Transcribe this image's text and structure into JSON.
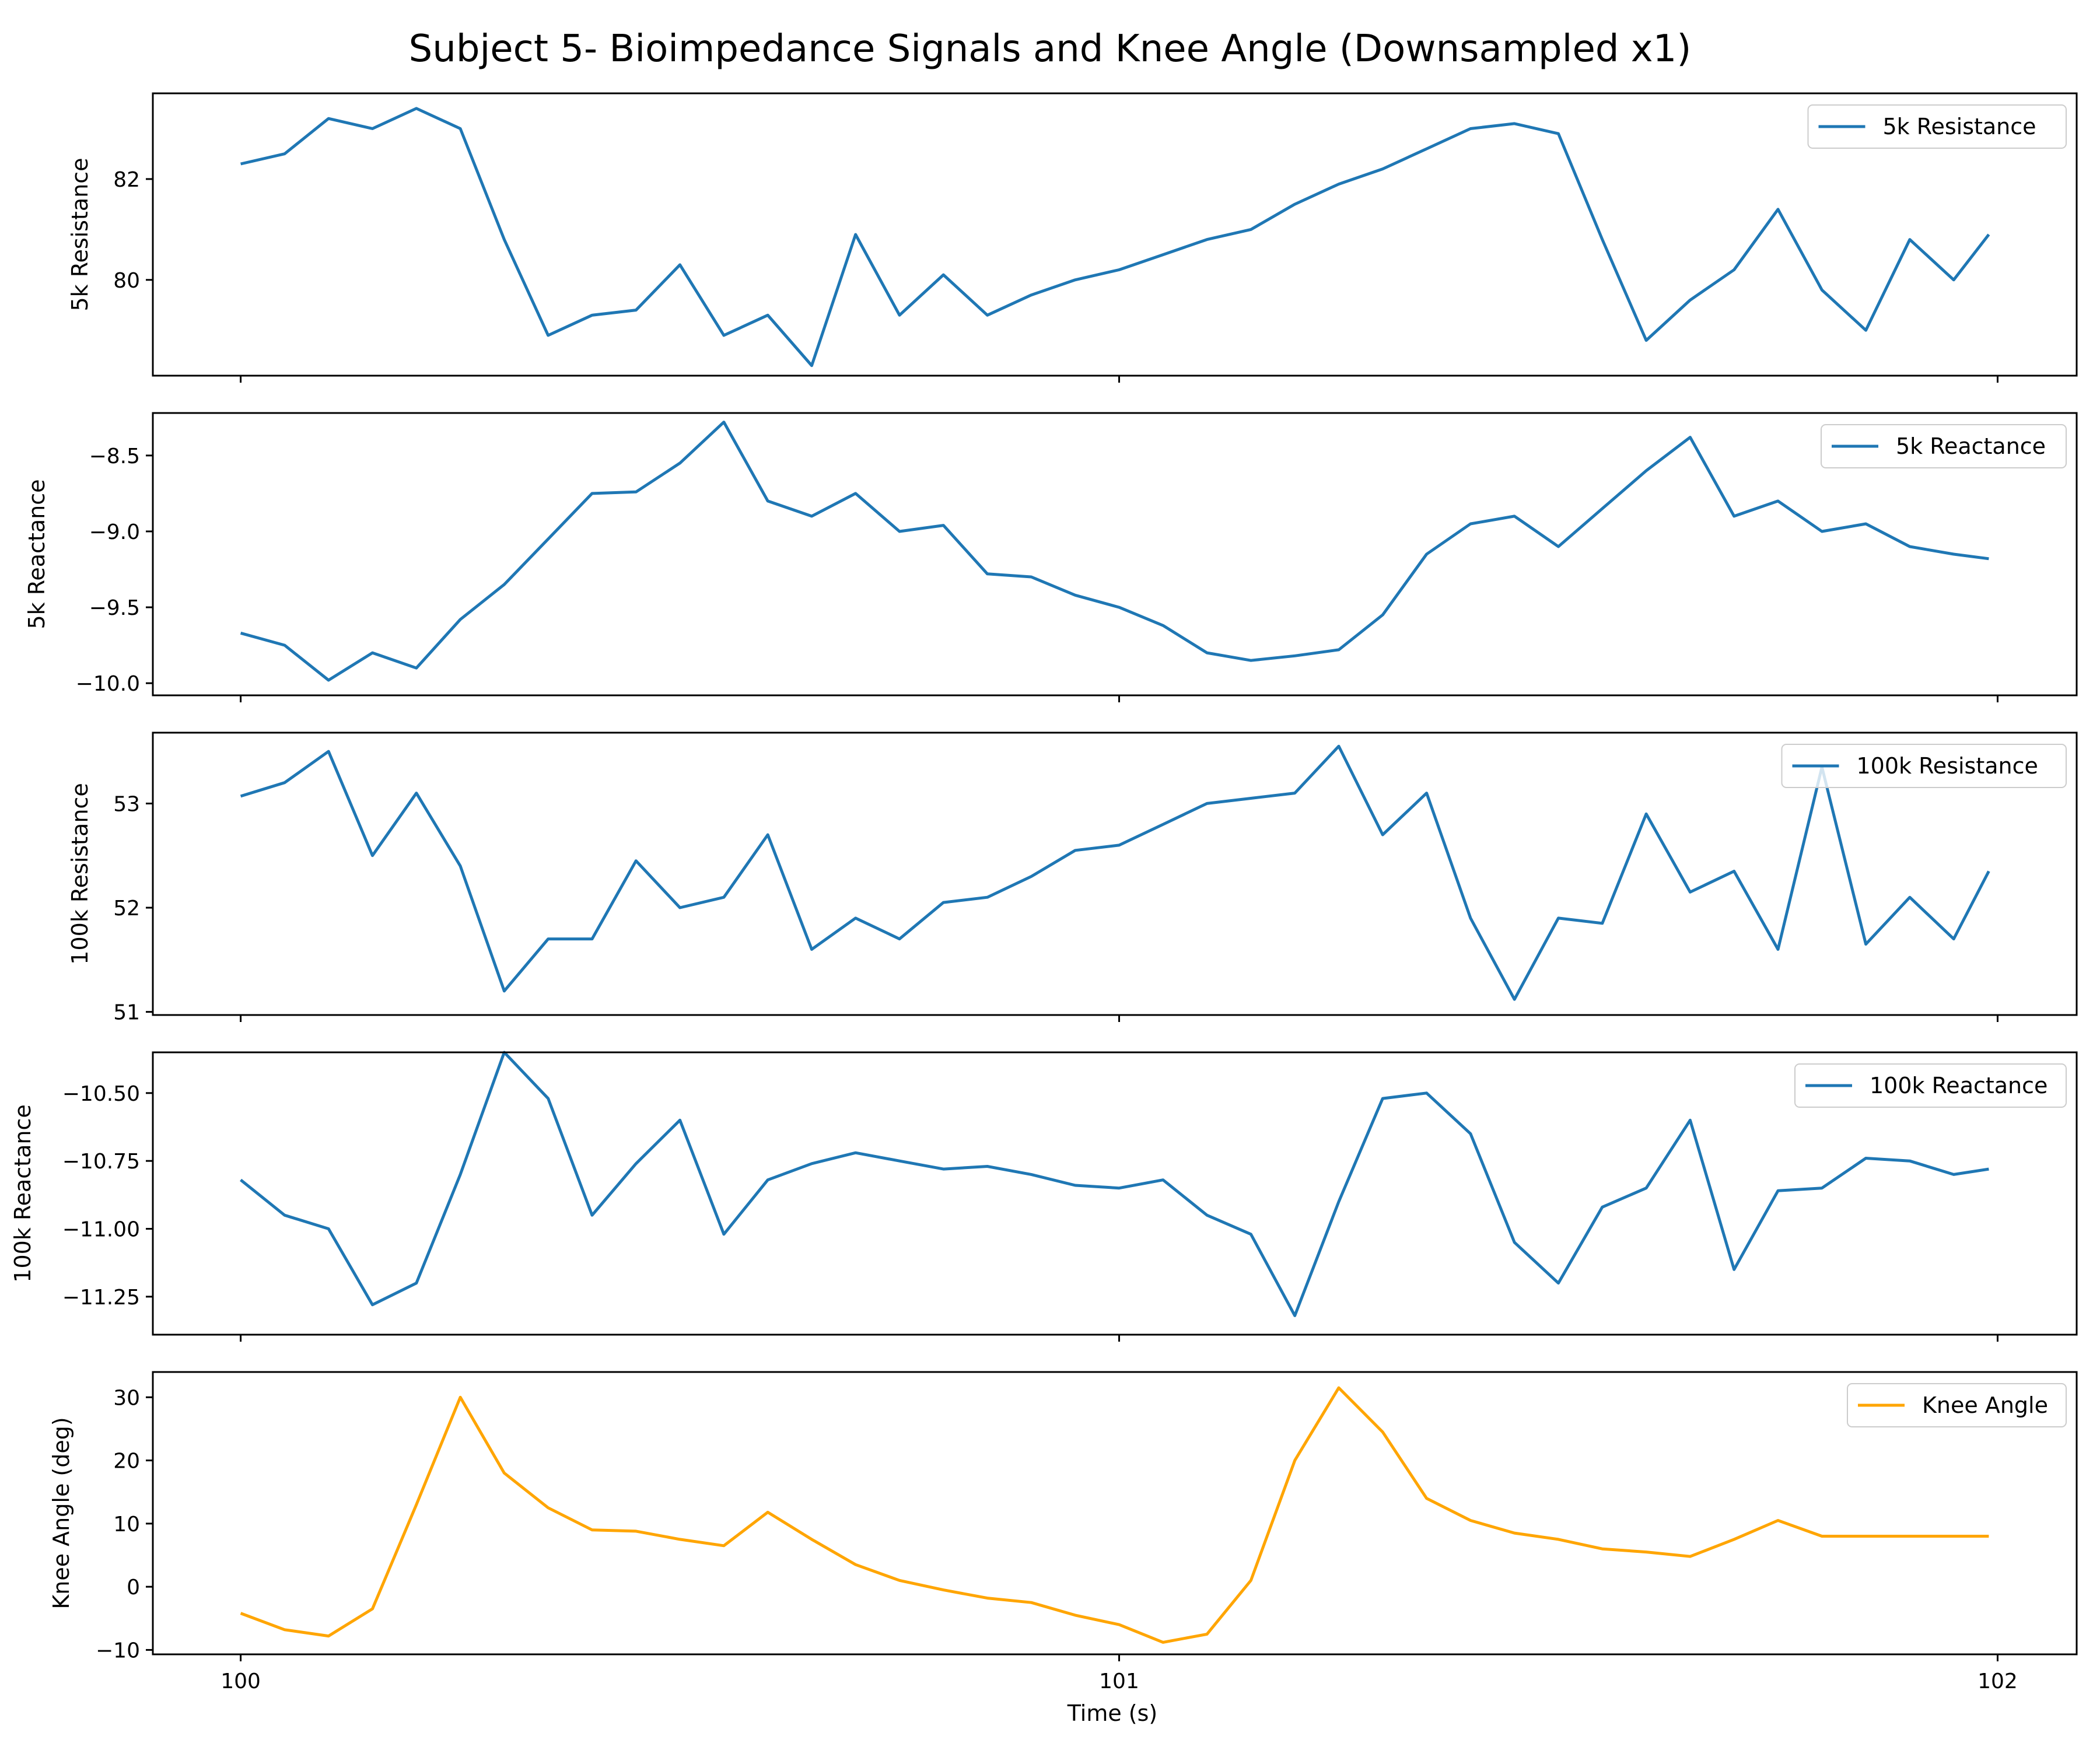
{
  "chart_data": {
    "type": "line",
    "title": "Subject 5- Bioimpedance Signals and Knee Angle (Downsampled x1)",
    "xlabel": "Time (s)",
    "xlim": [
      99.9,
      102.09
    ],
    "xticks": [
      100,
      101,
      102
    ],
    "colors": {
      "bio": "#1f77b4",
      "knee": "#ffa500"
    },
    "panels": [
      {
        "ylabel": "5k Resistance",
        "legend": "5k Resistance",
        "color": "#1f77b4",
        "ylim": [
          78.1,
          83.7
        ],
        "yticks": [
          80,
          82
        ],
        "x": [
          100.0,
          100.05,
          100.1,
          100.15,
          100.2,
          100.25,
          100.3,
          100.35,
          100.4,
          100.45,
          100.5,
          100.55,
          100.6,
          100.65,
          100.7,
          100.75,
          100.8,
          100.85,
          100.9,
          100.95,
          101.0,
          101.05,
          101.1,
          101.15,
          101.2,
          101.25,
          101.3,
          101.35,
          101.4,
          101.45,
          101.5,
          101.55,
          101.6,
          101.65,
          101.7,
          101.75,
          101.8,
          101.85,
          101.9,
          101.95,
          101.99
        ],
        "y": [
          82.3,
          82.5,
          83.2,
          83.0,
          83.4,
          83.0,
          80.8,
          78.9,
          79.3,
          79.4,
          80.3,
          78.9,
          79.3,
          78.3,
          80.9,
          79.3,
          80.1,
          79.3,
          79.7,
          80.0,
          80.2,
          80.5,
          80.8,
          81.0,
          81.5,
          81.9,
          82.2,
          82.6,
          83.0,
          83.1,
          82.9,
          80.8,
          78.8,
          79.6,
          80.2,
          81.4,
          79.8,
          79.0,
          80.8,
          80.0,
          80.9
        ]
      },
      {
        "ylabel": "5k Reactance",
        "legend": "5k Reactance",
        "color": "#1f77b4",
        "ylim": [
          -10.08,
          -8.22
        ],
        "yticks": [
          -10.0,
          -9.5,
          -9.0,
          -8.5
        ],
        "x": [
          100.0,
          100.05,
          100.1,
          100.15,
          100.2,
          100.25,
          100.3,
          100.35,
          100.4,
          100.45,
          100.5,
          100.55,
          100.6,
          100.65,
          100.7,
          100.75,
          100.8,
          100.85,
          100.9,
          100.95,
          101.0,
          101.05,
          101.1,
          101.15,
          101.2,
          101.25,
          101.3,
          101.35,
          101.4,
          101.45,
          101.5,
          101.55,
          101.6,
          101.65,
          101.7,
          101.75,
          101.8,
          101.85,
          101.9,
          101.95,
          101.99
        ],
        "y": [
          -9.67,
          -9.75,
          -9.98,
          -9.8,
          -9.9,
          -9.58,
          -9.35,
          -9.05,
          -8.75,
          -8.74,
          -8.55,
          -8.28,
          -8.8,
          -8.9,
          -8.75,
          -9.0,
          -8.96,
          -9.28,
          -9.3,
          -9.42,
          -9.5,
          -9.62,
          -9.8,
          -9.85,
          -9.82,
          -9.78,
          -9.55,
          -9.15,
          -8.95,
          -8.9,
          -9.1,
          -8.85,
          -8.6,
          -8.38,
          -8.9,
          -8.8,
          -9.0,
          -8.95,
          -9.1,
          -9.15,
          -9.18
        ]
      },
      {
        "ylabel": "100k Resistance",
        "legend": "100k Resistance",
        "color": "#1f77b4",
        "ylim": [
          50.97,
          53.68
        ],
        "yticks": [
          51,
          52,
          53
        ],
        "x": [
          100.0,
          100.05,
          100.1,
          100.15,
          100.2,
          100.25,
          100.3,
          100.35,
          100.4,
          100.45,
          100.5,
          100.55,
          100.6,
          100.65,
          100.7,
          100.75,
          100.8,
          100.85,
          100.9,
          100.95,
          101.0,
          101.05,
          101.1,
          101.15,
          101.2,
          101.25,
          101.3,
          101.35,
          101.4,
          101.45,
          101.5,
          101.55,
          101.6,
          101.65,
          101.7,
          101.75,
          101.8,
          101.85,
          101.9,
          101.95,
          101.99
        ],
        "y": [
          53.07,
          53.2,
          53.5,
          52.5,
          53.1,
          52.4,
          51.2,
          51.7,
          51.7,
          52.45,
          52.0,
          52.1,
          52.7,
          51.6,
          51.9,
          51.7,
          52.05,
          52.1,
          52.3,
          52.55,
          52.6,
          52.8,
          53.0,
          53.05,
          53.1,
          53.55,
          52.7,
          53.1,
          51.9,
          51.12,
          51.9,
          51.85,
          52.9,
          52.15,
          52.35,
          51.6,
          53.35,
          51.65,
          52.1,
          51.7,
          52.35
        ]
      },
      {
        "ylabel": "100k Reactance",
        "legend": "100k Reactance",
        "color": "#1f77b4",
        "ylim": [
          -11.39,
          -10.35
        ],
        "yticks": [
          -11.25,
          -11.0,
          -10.75,
          -10.5
        ],
        "x": [
          100.0,
          100.05,
          100.1,
          100.15,
          100.2,
          100.25,
          100.3,
          100.35,
          100.4,
          100.45,
          100.5,
          100.55,
          100.6,
          100.65,
          100.7,
          100.75,
          100.8,
          100.85,
          100.9,
          100.95,
          101.0,
          101.05,
          101.1,
          101.15,
          101.2,
          101.25,
          101.3,
          101.35,
          101.4,
          101.45,
          101.5,
          101.55,
          101.6,
          101.65,
          101.7,
          101.75,
          101.8,
          101.85,
          101.9,
          101.95,
          101.99
        ],
        "y": [
          -10.82,
          -10.95,
          -11.0,
          -11.28,
          -11.2,
          -10.8,
          -10.35,
          -10.52,
          -10.95,
          -10.76,
          -10.6,
          -11.02,
          -10.82,
          -10.76,
          -10.72,
          -10.75,
          -10.78,
          -10.77,
          -10.8,
          -10.84,
          -10.85,
          -10.82,
          -10.95,
          -11.02,
          -11.32,
          -10.9,
          -10.52,
          -10.5,
          -10.65,
          -11.05,
          -11.2,
          -10.92,
          -10.85,
          -10.6,
          -11.15,
          -10.86,
          -10.85,
          -10.74,
          -10.75,
          -10.8,
          -10.78
        ]
      },
      {
        "ylabel": "Knee Angle (deg)",
        "legend": "Knee Angle",
        "color": "#ffa500",
        "ylim": [
          -10.7,
          34.0
        ],
        "yticks": [
          -10,
          0,
          10,
          20,
          30
        ],
        "x": [
          100.0,
          100.05,
          100.1,
          100.15,
          100.2,
          100.25,
          100.3,
          100.35,
          100.4,
          100.45,
          100.5,
          100.55,
          100.6,
          100.65,
          100.7,
          100.75,
          100.8,
          100.85,
          100.9,
          100.95,
          101.0,
          101.05,
          101.1,
          101.15,
          101.2,
          101.25,
          101.3,
          101.35,
          101.4,
          101.45,
          101.5,
          101.55,
          101.6,
          101.65,
          101.7,
          101.75,
          101.8,
          101.85,
          101.9,
          101.95,
          101.99
        ],
        "y": [
          -4.2,
          -6.8,
          -7.8,
          -3.5,
          13.0,
          30.0,
          18.0,
          12.5,
          9.0,
          8.8,
          7.5,
          6.5,
          11.8,
          7.5,
          3.5,
          1.0,
          -0.5,
          -1.8,
          -2.5,
          -4.5,
          -6.0,
          -8.8,
          -7.5,
          1.0,
          20.0,
          31.5,
          24.5,
          14.0,
          10.5,
          8.5,
          7.5,
          6.0,
          5.5,
          4.8,
          7.5,
          10.5,
          8.0,
          8.0,
          8.0,
          8.0,
          8.0
        ]
      }
    ]
  }
}
